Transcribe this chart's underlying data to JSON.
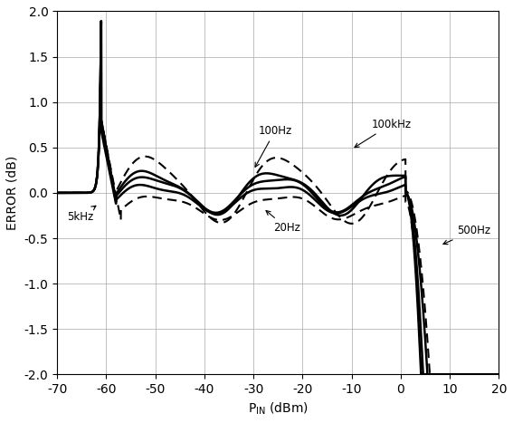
{
  "title": "",
  "xlabel": "P_IN (dBm)",
  "ylabel": "ERROR (dB)",
  "xlim": [
    -70,
    20
  ],
  "ylim": [
    -2.0,
    2.0
  ],
  "xticks": [
    -70,
    -60,
    -50,
    -40,
    -30,
    -20,
    -10,
    0,
    10,
    20
  ],
  "yticks": [
    -2.0,
    -1.5,
    -1.0,
    -0.5,
    0.0,
    0.5,
    1.0,
    1.5,
    2.0
  ],
  "grid_color": "#aaaaaa",
  "background_color": "#ffffff"
}
